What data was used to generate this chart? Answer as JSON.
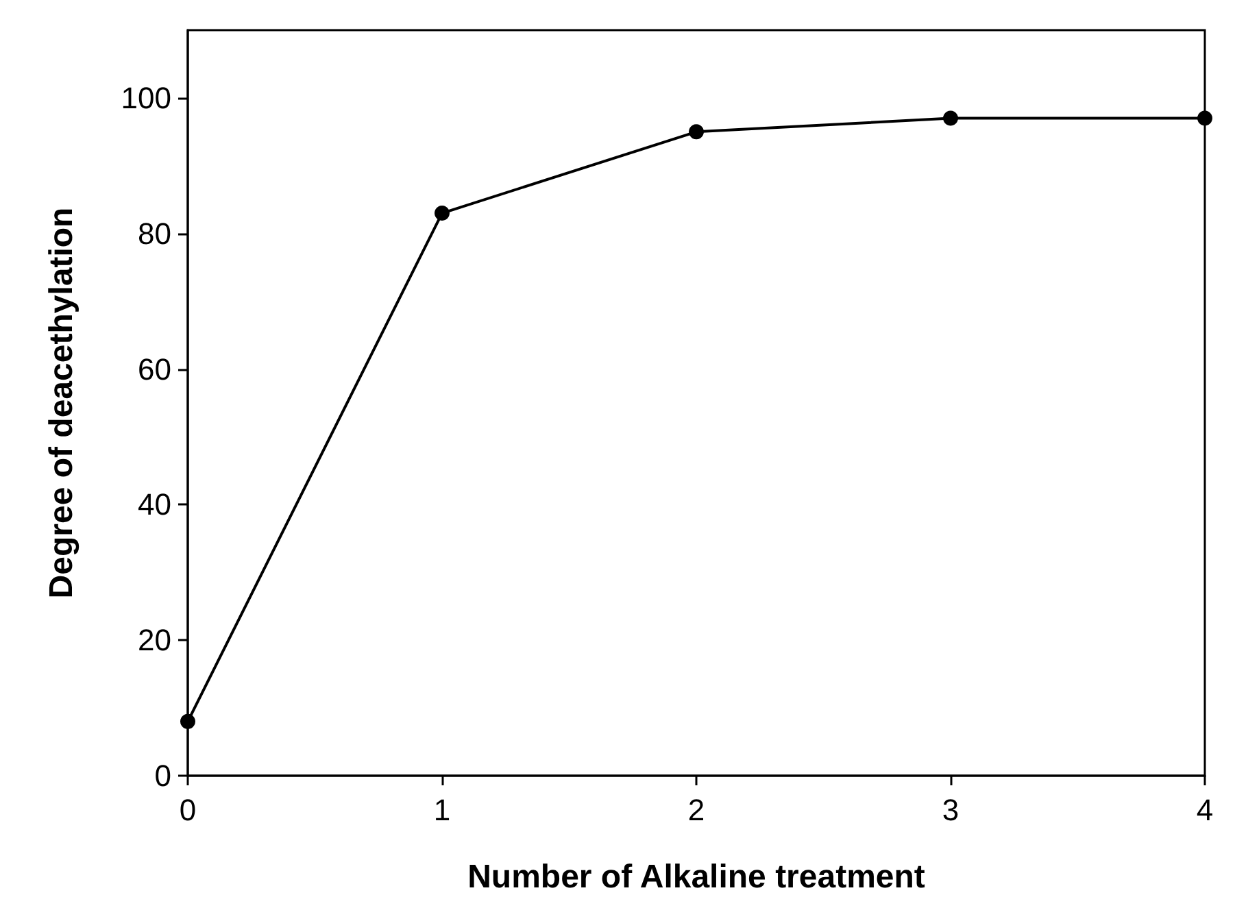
{
  "chart_data": {
    "type": "line",
    "xlabel": "Number of Alkaline treatment",
    "ylabel": "Degree of deacethylation",
    "x": [
      0,
      1,
      2,
      3,
      4
    ],
    "series": [
      {
        "color": "#000000",
        "values": [
          8,
          83,
          95,
          97,
          97
        ]
      }
    ],
    "xlim": [
      0,
      4
    ],
    "xticks": [
      0,
      1,
      2,
      3,
      4
    ],
    "ylim": [
      0,
      110
    ],
    "yticks": [
      0,
      20,
      40,
      60,
      80,
      100
    ],
    "grid": false,
    "marker": "circle",
    "line_style": "solid"
  }
}
